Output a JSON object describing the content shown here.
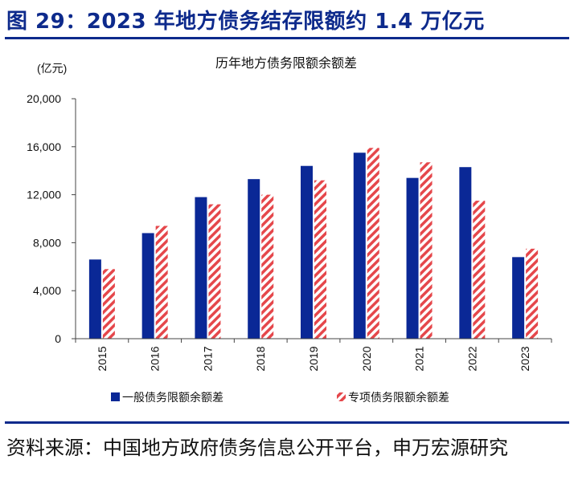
{
  "figure_title": "图 29：2023 年地方债务结存限额约 1.4 万亿元",
  "source_text": "资料来源：中国地方政府债务信息公开平台，申万宏源研究",
  "colors": {
    "brand": "#0d2a8c",
    "general": "#0a2896",
    "special_stripe": "#e5474b"
  },
  "chart_data": {
    "type": "bar",
    "title": "历年地方债务限额余额差",
    "unit_label": "(亿元)",
    "xlabel": "",
    "ylabel": "(亿元)",
    "ylim": [
      0,
      20000
    ],
    "yticks": [
      0,
      4000,
      8000,
      12000,
      16000,
      20000
    ],
    "ytick_labels": [
      "0",
      "4,000",
      "8,000",
      "12,000",
      "16,000",
      "20,000"
    ],
    "categories": [
      "2015",
      "2016",
      "2017",
      "2018",
      "2019",
      "2020",
      "2021",
      "2022",
      "2023"
    ],
    "series": [
      {
        "name": "一般债务限额余额差",
        "values": [
          6600,
          8800,
          11800,
          13300,
          14400,
          15500,
          13400,
          14300,
          6800
        ]
      },
      {
        "name": "专项债务限额余额差",
        "values": [
          5800,
          9400,
          11200,
          12000,
          13200,
          15900,
          14700,
          11500,
          7500
        ]
      }
    ],
    "legend_position": "bottom"
  }
}
